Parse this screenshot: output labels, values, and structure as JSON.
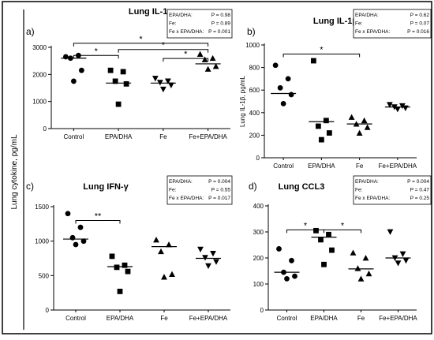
{
  "y_axis_shared_label": "Lung cytokine, pg/mL",
  "categories": [
    "Control",
    "EPA/DHA",
    "Fe",
    "Fe+EPA/DHA"
  ],
  "chart_data": [
    {
      "type": "scatter",
      "panel_label": "a)",
      "title": "Lung IL-1α",
      "ylabel": "",
      "ylim": [
        0,
        3000
      ],
      "yticks": [
        0,
        1000,
        2000,
        3000
      ],
      "categories": [
        "Control",
        "EPA/DHA",
        "Fe",
        "Fe+EPA/DHA"
      ],
      "markers": [
        "circle",
        "square",
        "triangle-down",
        "triangle-up"
      ],
      "points": [
        [
          2650,
          2700,
          2600,
          2150,
          1750
        ],
        [
          2150,
          2100,
          1750,
          1650,
          900
        ],
        [
          1850,
          1750,
          1700,
          1600,
          1450
        ],
        [
          2750,
          2600,
          2550,
          2300,
          2200
        ]
      ],
      "medians": [
        2600,
        1680,
        1680,
        2390
      ],
      "stats": [
        {
          "label": "EPA/DHA:",
          "p": "P = 0.98"
        },
        {
          "label": "Fe:",
          "p": "P = 0.89"
        },
        {
          "label": "Fe x EPA/DHA:",
          "p": "P = 0.001"
        }
      ],
      "brackets": [
        {
          "from": 0,
          "to": 1,
          "label": "*",
          "y": 2700
        },
        {
          "from": 0,
          "to": 3,
          "label": "*",
          "y": 3150
        },
        {
          "from": 1,
          "to": 3,
          "label": "*",
          "y": 2920
        },
        {
          "from": 2,
          "to": 3,
          "label": "*",
          "y": 2590
        }
      ]
    },
    {
      "type": "scatter",
      "panel_label": "b)",
      "title": "Lung IL-1β",
      "ylabel": "Lung IL-1β, pg/mL",
      "ylim": [
        0,
        1000
      ],
      "yticks": [
        0,
        200,
        400,
        600,
        800,
        1000
      ],
      "categories": [
        "Control",
        "EPA/DHA",
        "Fe",
        "Fe+EPA/DHA"
      ],
      "markers": [
        "circle",
        "square",
        "triangle-up",
        "triangle-down"
      ],
      "points": [
        [
          820,
          700,
          620,
          560,
          480
        ],
        [
          860,
          330,
          280,
          220,
          160
        ],
        [
          360,
          330,
          300,
          270,
          220
        ],
        [
          470,
          460,
          450,
          440,
          430
        ]
      ],
      "medians": [
        570,
        320,
        300,
        450
      ],
      "stats": [
        {
          "label": "EPA/DHA:",
          "p": "P = 0.62"
        },
        {
          "label": "Fe:",
          "p": "P = 0.07"
        },
        {
          "label": "Fe x EPA/DHA:",
          "p": "P = 0.016"
        }
      ],
      "brackets": [
        {
          "from": 0,
          "to": 2,
          "label": "*",
          "y": 920
        }
      ]
    },
    {
      "type": "scatter",
      "panel_label": "c)",
      "title": "Lung IFN-γ",
      "ylabel": "",
      "ylim": [
        0,
        1500
      ],
      "yticks": [
        0,
        500,
        1000,
        1500
      ],
      "categories": [
        "Control",
        "EPA/DHA",
        "Fe",
        "Fe+EPA/DHA"
      ],
      "markers": [
        "circle",
        "square",
        "triangle-up",
        "triangle-down"
      ],
      "points": [
        [
          1400,
          1200,
          1050,
          1000,
          950
        ],
        [
          780,
          650,
          620,
          560,
          270
        ],
        [
          1020,
          950,
          850,
          520,
          480
        ],
        [
          880,
          820,
          760,
          700,
          640
        ]
      ],
      "medians": [
        1030,
        630,
        920,
        750
      ],
      "stats": [
        {
          "label": "EPA/DHA:",
          "p": "P = 0.004"
        },
        {
          "label": "Fe:",
          "p": "P = 0.55"
        },
        {
          "label": "Fe x EPA/DHA:",
          "p": "P = 0.017"
        }
      ],
      "brackets": [
        {
          "from": 0,
          "to": 1,
          "label": "**",
          "y": 1300
        }
      ]
    },
    {
      "type": "scatter",
      "panel_label": "d)",
      "title": "Lung CCL3",
      "ylabel": "",
      "ylim": [
        0,
        400
      ],
      "yticks": [
        0,
        100,
        200,
        300,
        400
      ],
      "categories": [
        "Control",
        "EPA/DHA",
        "Fe",
        "Fe+EPA/DHA"
      ],
      "markers": [
        "circle",
        "square",
        "triangle-up",
        "triangle-down"
      ],
      "points": [
        [
          235,
          190,
          145,
          130,
          120
        ],
        [
          305,
          290,
          270,
          230,
          175
        ],
        [
          220,
          200,
          160,
          140,
          120
        ],
        [
          300,
          215,
          200,
          190,
          180
        ]
      ],
      "medians": [
        145,
        280,
        158,
        200
      ],
      "stats": [
        {
          "label": "EPA/DHA:",
          "p": "P = 0.004"
        },
        {
          "label": "Fe:",
          "p": "P = 0.47"
        },
        {
          "label": "Fe x EPA/DHA:",
          "p": "P = 0.25"
        }
      ],
      "brackets": [
        {
          "from": 0,
          "to": 1,
          "label": "*",
          "y": 308
        },
        {
          "from": 1,
          "to": 2,
          "label": "*",
          "y": 308
        }
      ]
    }
  ]
}
